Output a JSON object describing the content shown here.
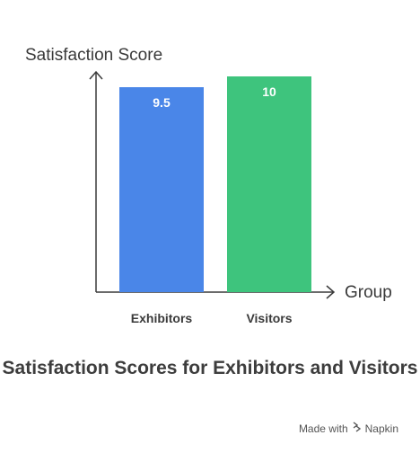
{
  "chart_data": {
    "type": "bar",
    "categories": [
      "Exhibitors",
      "Visitors"
    ],
    "values": [
      9.5,
      10
    ],
    "data_labels": [
      "9.5",
      "10"
    ],
    "title": "Satisfaction Scores for Exhibitors and Visitors",
    "xlabel": "Group",
    "ylabel": "Satisfaction Score",
    "ylim": [
      0,
      10
    ],
    "colors": [
      "#4a86e8",
      "#3ec47d"
    ],
    "grid": false,
    "legend": "none"
  },
  "footer": {
    "text": "Made with",
    "brand": "Napkin",
    "brand_icon": "napkin-logo-icon"
  }
}
